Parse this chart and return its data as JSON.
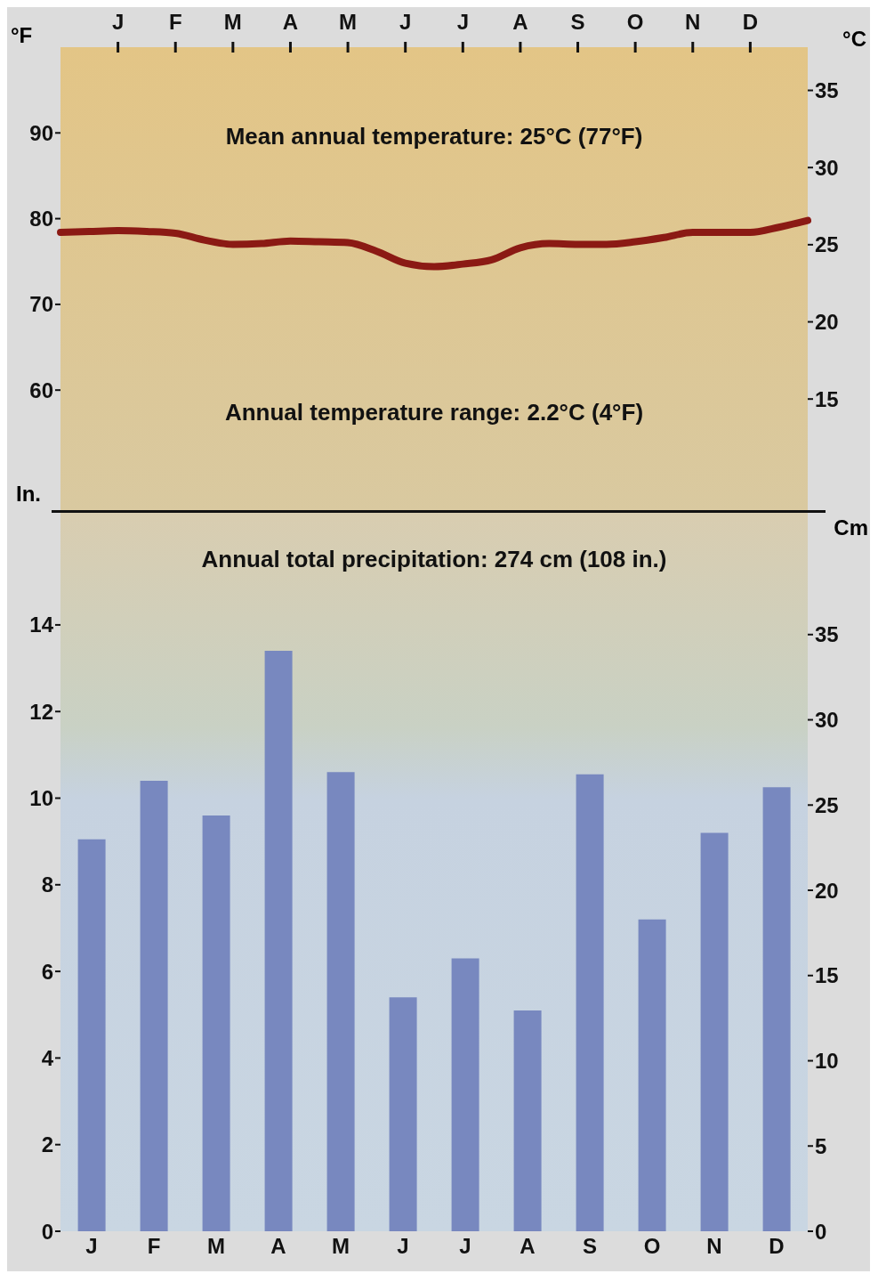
{
  "chart_data": [
    {
      "type": "line",
      "ylabel": "°F",
      "y2label": "°C",
      "annotations": [
        "Mean annual temperature: 25°C (77°F)",
        "Annual temperature range: 2.2°C (4°F)"
      ],
      "categories": [
        null,
        null,
        "J",
        null,
        "F",
        null,
        "M",
        null,
        "A",
        null,
        "M",
        null,
        "J",
        null,
        "J",
        null,
        "A",
        null,
        "S",
        null,
        "O",
        null,
        "N",
        null,
        "D",
        null,
        null
      ],
      "values": [
        78.4,
        78.5,
        78.6,
        78.5,
        78.3,
        77.5,
        77.0,
        77.1,
        77.4,
        77.3,
        77.2,
        76.2,
        74.8,
        74.4,
        74.7,
        75.2,
        76.6,
        77.1,
        77.0,
        77.0,
        77.3,
        77.8,
        78.4,
        78.4,
        78.4,
        79.0,
        79.8
      ],
      "color": "#8b1a14",
      "ylim": [
        46,
        100
      ],
      "yticks": [
        60,
        70,
        80,
        90
      ],
      "y2lim": [
        7.8,
        37.8
      ],
      "y2ticks": [
        15,
        20,
        25,
        30,
        35
      ]
    },
    {
      "type": "bar",
      "ylabel": "In.",
      "y2label": "Cm",
      "annotations": [
        "Annual total precipitation: 274 cm (108 in.)"
      ],
      "categories": [
        "J",
        "F",
        "M",
        "A",
        "M",
        "J",
        "J",
        "A",
        "S",
        "O",
        "N",
        "D"
      ],
      "values": [
        9.05,
        10.4,
        9.6,
        13.4,
        10.6,
        5.4,
        6.3,
        5.1,
        10.55,
        7.2,
        9.2,
        10.25
      ],
      "color": "#7888bf",
      "ylim": [
        0,
        16.65
      ],
      "yticks": [
        0,
        2,
        4,
        6,
        8,
        10,
        12,
        14
      ],
      "y2lim": [
        0,
        42.3
      ],
      "y2ticks": [
        0,
        5,
        10,
        15,
        20,
        25,
        30,
        35
      ]
    }
  ]
}
